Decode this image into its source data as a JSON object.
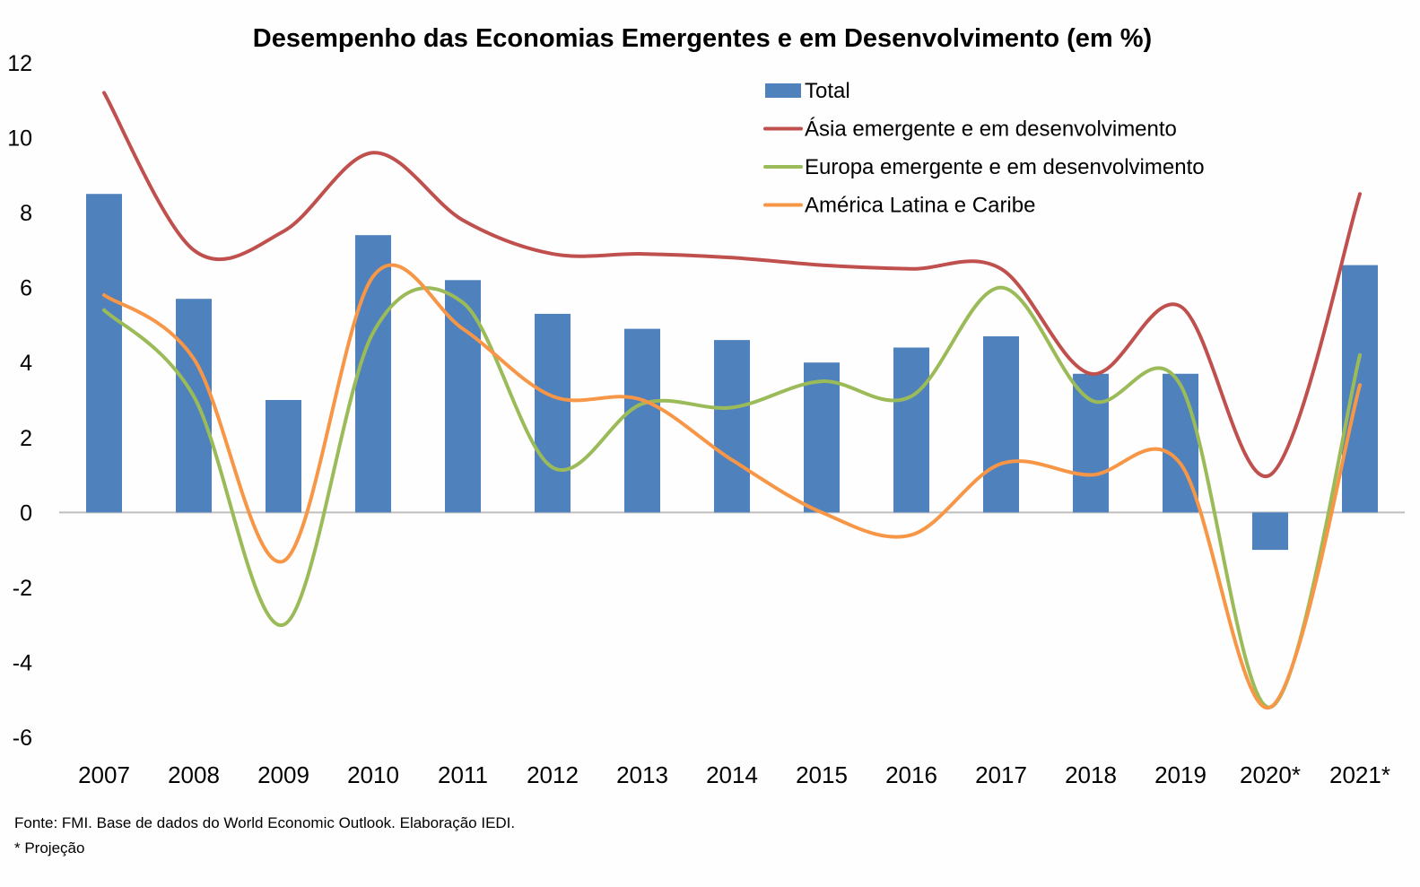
{
  "chart_data": {
    "type": "bar",
    "title": "Desempenho das Economias Emergentes e em Desenvolvimento (em %)",
    "xlabel": "",
    "ylabel": "",
    "categories": [
      "2007",
      "2008",
      "2009",
      "2010",
      "2011",
      "2012",
      "2013",
      "2014",
      "2015",
      "2016",
      "2017",
      "2018",
      "2019",
      "2020*",
      "2021*"
    ],
    "ylim": [
      -6,
      12
    ],
    "yticks": [
      12,
      10,
      8,
      6,
      4,
      2,
      0,
      -2,
      -4,
      -6
    ],
    "grid": false,
    "legend_position": "top-right",
    "series": [
      {
        "name": "Total",
        "type": "bar",
        "color": "#4f81bd",
        "values": [
          8.5,
          5.7,
          3.0,
          7.4,
          6.2,
          5.3,
          4.9,
          4.6,
          4.0,
          4.4,
          4.7,
          3.7,
          3.7,
          -1.0,
          6.6
        ]
      },
      {
        "name": "Ásia emergente e em desenvolvimento",
        "type": "line",
        "smooth": true,
        "color": "#c0504d",
        "values": [
          11.2,
          7.0,
          7.5,
          9.6,
          7.8,
          6.9,
          6.9,
          6.8,
          6.6,
          6.5,
          6.5,
          3.7,
          5.5,
          1.0,
          8.5
        ]
      },
      {
        "name": "Europa emergente e em desenvolvimento",
        "type": "line",
        "smooth": true,
        "color": "#9bbb59",
        "values": [
          5.4,
          3.1,
          -3.0,
          4.8,
          5.6,
          1.2,
          2.9,
          2.8,
          3.5,
          3.1,
          6.0,
          3.0,
          3.4,
          -5.2,
          4.2
        ]
      },
      {
        "name": "América Latina e Caribe",
        "type": "line",
        "smooth": true,
        "color": "#f79646",
        "values": [
          5.8,
          4.1,
          -1.3,
          6.3,
          4.9,
          3.1,
          3.0,
          1.4,
          0.0,
          -0.6,
          1.3,
          1.0,
          1.3,
          -5.2,
          3.4
        ]
      }
    ]
  },
  "footnotes": {
    "source": "Fonte: FMI. Base de dados do World Economic Outlook. Elaboração IEDI.",
    "projection": "* Projeção"
  }
}
